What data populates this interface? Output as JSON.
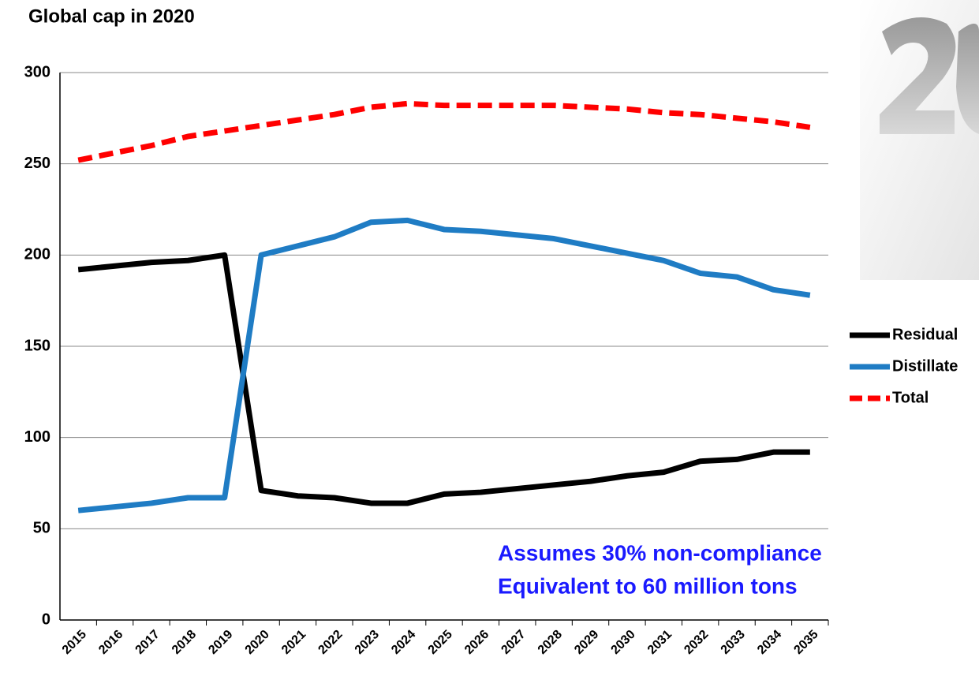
{
  "chart_data": {
    "type": "line",
    "title": "Global cap in 2020",
    "categories": [
      "2015",
      "2016",
      "2017",
      "2018",
      "2019",
      "2020",
      "2021",
      "2022",
      "2023",
      "2024",
      "2025",
      "2026",
      "2027",
      "2028",
      "2029",
      "2030",
      "2031",
      "2032",
      "2033",
      "2034",
      "2035"
    ],
    "series": [
      {
        "name": "Residual",
        "color": "#000000",
        "dash": false,
        "values": [
          192,
          194,
          196,
          197,
          200,
          71,
          68,
          67,
          64,
          64,
          69,
          70,
          72,
          74,
          76,
          79,
          81,
          87,
          88,
          92,
          92
        ]
      },
      {
        "name": "Distillate",
        "color": "#1f7cc4",
        "dash": false,
        "values": [
          60,
          62,
          64,
          67,
          67,
          200,
          205,
          210,
          218,
          219,
          214,
          213,
          211,
          209,
          205,
          201,
          197,
          190,
          188,
          181,
          178
        ]
      },
      {
        "name": "Total",
        "color": "#ff0000",
        "dash": true,
        "values": [
          252,
          256,
          260,
          265,
          268,
          271,
          274,
          277,
          281,
          283,
          282,
          282,
          282,
          282,
          281,
          280,
          278,
          277,
          275,
          273,
          270
        ]
      }
    ],
    "ylim": [
      0,
      300
    ],
    "yticks": [
      0,
      50,
      100,
      150,
      200,
      250,
      300
    ],
    "grid": true,
    "annotations": [
      "Assumes 30% non-compliance",
      "Equivalent to 60 million tons"
    ]
  }
}
